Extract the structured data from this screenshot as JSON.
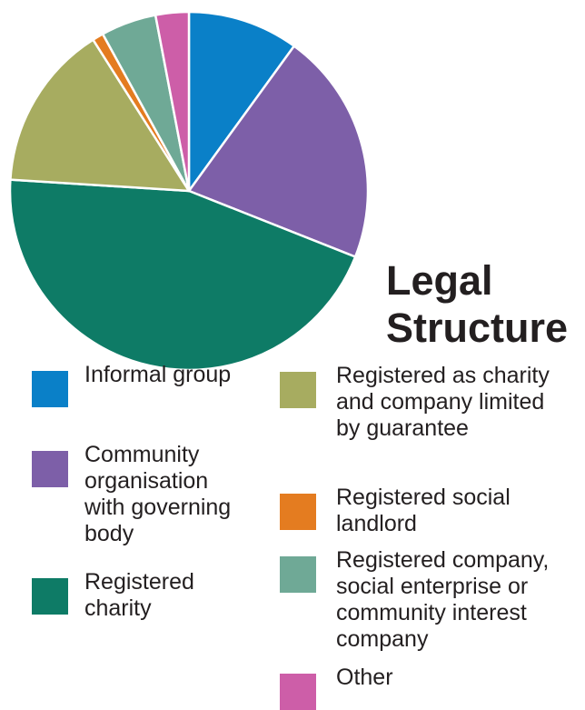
{
  "chart_data": {
    "type": "pie",
    "title": "Legal Structure",
    "slices": [
      {
        "label": "Informal group",
        "value": 10,
        "color": "#0a80c8"
      },
      {
        "label": "Community organisation with governing body",
        "value": 21,
        "color": "#7d5fa8"
      },
      {
        "label": "Registered charity",
        "value": 45,
        "color": "#0e7b66"
      },
      {
        "label": "Registered as charity and company limited by guarantee",
        "value": 15,
        "color": "#a7ac60"
      },
      {
        "label": "Registered social landlord",
        "value": 1,
        "color": "#e47c20"
      },
      {
        "label": "Registered company, social enterprise or community interest company",
        "value": 5,
        "color": "#6fa996"
      },
      {
        "label": "Other",
        "value": 3,
        "color": "#cd5ea8"
      }
    ],
    "legend_placement": "bottom",
    "legend": {
      "left": [
        {
          "lines": [
            "Informal group"
          ],
          "color": "#0a80c8"
        },
        {
          "lines": [
            "Community",
            "organisation",
            "with governing",
            "body"
          ],
          "color": "#7d5fa8"
        },
        {
          "lines": [
            "Registered",
            "charity"
          ],
          "color": "#0e7b66"
        }
      ],
      "right": [
        {
          "lines": [
            "Registered as charity",
            "and company limited",
            "by guarantee"
          ],
          "color": "#a7ac60"
        },
        {
          "lines": [
            "Registered social",
            "landlord"
          ],
          "color": "#e47c20"
        },
        {
          "lines": [
            "Registered company,",
            "social enterprise or",
            "community interest",
            "company"
          ],
          "color": "#6fa996"
        },
        {
          "lines": [
            "Other"
          ],
          "color": "#cd5ea8"
        }
      ]
    }
  },
  "title": {
    "line1": "Legal",
    "line2": "Structure"
  }
}
